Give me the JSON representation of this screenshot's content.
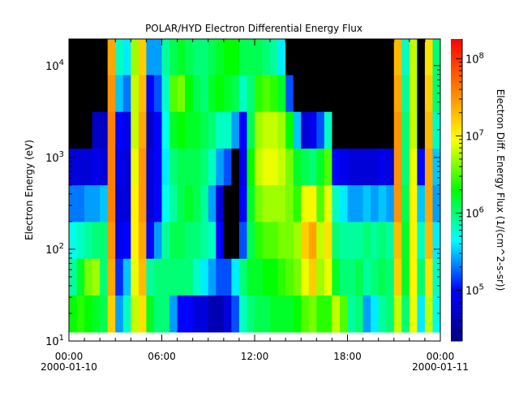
{
  "chart_data": {
    "type": "heatmap",
    "title": "POLAR/HYD  Electron Differential Energy Flux",
    "xlabel": "",
    "ylabel": "Electron Energy (eV)",
    "colorbar_label": "Electron Diff. Energy Flux (1/(cm^2-s-sr))",
    "x_tick_labels": [
      {
        "hours": 0,
        "time": "00:00",
        "date": "2000-01-10"
      },
      {
        "hours": 6,
        "time": "06:00",
        "date": ""
      },
      {
        "hours": 12,
        "time": "12:00",
        "date": ""
      },
      {
        "hours": 18,
        "time": "18:00",
        "date": ""
      },
      {
        "hours": 24,
        "time": "00:00",
        "date": "2000-01-11"
      }
    ],
    "y_scale": "log",
    "y_range_ev": [
      10,
      19500
    ],
    "y_tick_labels": [
      {
        "base": "10",
        "exp": "1",
        "value": 10
      },
      {
        "base": "10",
        "exp": "2",
        "value": 100
      },
      {
        "base": "10",
        "exp": "3",
        "value": 1000
      },
      {
        "base": "10",
        "exp": "4",
        "value": 10000
      }
    ],
    "colorbar_scale": "log",
    "colorbar_range": [
      22000,
      180000000
    ],
    "colorbar_tick_labels": [
      {
        "base": "10",
        "exp": "5",
        "value": 100000
      },
      {
        "base": "10",
        "exp": "6",
        "value": 1000000
      },
      {
        "base": "10",
        "exp": "7",
        "value": 10000000
      },
      {
        "base": "10",
        "exp": "8",
        "value": 100000000
      }
    ],
    "colormap": [
      "#00007f",
      "#0000ff",
      "#00ffff",
      "#00ff00",
      "#ffff00",
      "#ff7f00",
      "#ff0000"
    ],
    "fill_color": "#000000",
    "time_bin_hours": 0.5,
    "energy_bin_centers_ev": [
      20,
      50,
      126,
      316,
      794,
      1995,
      5012,
      12589
    ],
    "energy_range_ev": [
      12.5,
      20000
    ],
    "log10_flux_by_time": [
      [
        6.3,
        5.9,
        5.7,
        5.3,
        4.8,
        null,
        null,
        null
      ],
      [
        6.4,
        6.2,
        5.8,
        5.3,
        4.8,
        null,
        null,
        null
      ],
      [
        6.3,
        6.6,
        5.9,
        5.4,
        4.8,
        null,
        null,
        null
      ],
      [
        6.2,
        6.7,
        6.0,
        5.4,
        4.9,
        4.7,
        null,
        null
      ],
      [
        6.1,
        6.0,
        6.0,
        5.5,
        4.8,
        4.7,
        null,
        null
      ],
      [
        7.2,
        7.4,
        7.5,
        7.6,
        7.6,
        7.6,
        7.5,
        7.4
      ],
      [
        5.4,
        5.1,
        4.9,
        4.8,
        4.9,
        5.0,
        5.5,
        5.8
      ],
      [
        5.8,
        5.5,
        5.0,
        4.8,
        4.8,
        4.9,
        5.3,
        5.6
      ],
      [
        6.8,
        6.9,
        7.0,
        7.0,
        6.9,
        6.8,
        6.8,
        6.7
      ],
      [
        7.1,
        7.3,
        7.4,
        7.5,
        7.5,
        7.4,
        7.3,
        7.2
      ],
      [
        6.2,
        5.9,
        5.0,
        4.8,
        4.8,
        4.7,
        5.0,
        5.4
      ],
      [
        6.0,
        6.0,
        5.4,
        5.0,
        5.0,
        5.0,
        5.2,
        5.4
      ],
      [
        6.0,
        6.0,
        5.9,
        5.7,
        5.6,
        5.7,
        5.8,
        5.9
      ],
      [
        5.4,
        6.0,
        6.1,
        5.9,
        6.0,
        6.2,
        6.5,
        6.1
      ],
      [
        5.0,
        6.0,
        6.1,
        6.1,
        6.1,
        6.3,
        6.6,
        6.2
      ],
      [
        5.0,
        6.0,
        6.0,
        6.2,
        6.1,
        6.2,
        6.3,
        6.1
      ],
      [
        4.8,
        5.8,
        6.0,
        6.1,
        6.1,
        6.2,
        6.1,
        6.0
      ],
      [
        4.8,
        5.6,
        5.9,
        5.9,
        6.0,
        6.1,
        6.0,
        6.0
      ],
      [
        4.6,
        5.4,
        5.8,
        5.4,
        5.8,
        6.0,
        6.2,
        6.1
      ],
      [
        4.6,
        5.2,
        5.0,
        4.8,
        5.4,
        5.8,
        6.3,
        6.2
      ],
      [
        4.8,
        5.2,
        null,
        null,
        5.2,
        5.8,
        6.2,
        6.3
      ],
      [
        5.2,
        5.6,
        null,
        null,
        null,
        5.4,
        6.1,
        6.3
      ],
      [
        5.8,
        6.0,
        5.2,
        5.0,
        4.9,
        5.0,
        5.8,
        6.1
      ],
      [
        6.0,
        6.2,
        6.1,
        6.2,
        6.3,
        6.1,
        6.0,
        6.1
      ],
      [
        6.1,
        6.2,
        6.4,
        6.6,
        6.8,
        6.7,
        6.4,
        6.1
      ],
      [
        6.1,
        6.3,
        6.5,
        6.7,
        6.9,
        6.8,
        6.5,
        6.0
      ],
      [
        6.2,
        6.3,
        6.5,
        6.7,
        6.9,
        6.8,
        6.4,
        5.9
      ],
      [
        6.2,
        6.4,
        6.6,
        6.7,
        6.8,
        6.7,
        6.2,
        5.6
      ],
      [
        6.2,
        6.5,
        6.6,
        6.6,
        6.6,
        6.3,
        5.2,
        null
      ],
      [
        6.3,
        6.6,
        6.7,
        6.4,
        6.2,
        5.5,
        null,
        null
      ],
      [
        6.5,
        6.9,
        7.2,
        6.9,
        6.1,
        4.8,
        null,
        null
      ],
      [
        6.6,
        7.2,
        7.4,
        7.0,
        6.0,
        4.9,
        null,
        null
      ],
      [
        6.4,
        6.7,
        6.8,
        6.5,
        6.2,
        5.2,
        null,
        null
      ],
      [
        6.4,
        6.9,
        7.1,
        6.9,
        6.5,
        5.8,
        null,
        null
      ],
      [
        6.8,
        6.2,
        6.0,
        5.8,
        5.0,
        null,
        null,
        null
      ],
      [
        6.5,
        6.0,
        5.9,
        5.6,
        4.9,
        null,
        null,
        null
      ],
      [
        5.9,
        6.0,
        5.9,
        5.4,
        4.8,
        null,
        null,
        null
      ],
      [
        6.0,
        6.1,
        5.9,
        5.4,
        4.8,
        null,
        null,
        null
      ],
      [
        5.4,
        5.9,
        6.0,
        5.5,
        4.8,
        null,
        null,
        null
      ],
      [
        5.6,
        6.0,
        5.9,
        5.4,
        4.8,
        null,
        null,
        null
      ],
      [
        5.9,
        6.1,
        6.0,
        5.5,
        4.9,
        null,
        null,
        null
      ],
      [
        6.0,
        6.0,
        5.9,
        5.4,
        4.8,
        null,
        null,
        null
      ],
      [
        6.8,
        7.2,
        7.3,
        7.5,
        7.5,
        7.5,
        7.4,
        7.3
      ],
      [
        6.0,
        6.2,
        6.2,
        6.1,
        6.0,
        6.0,
        5.9,
        5.8
      ],
      [
        6.9,
        7.0,
        7.0,
        7.0,
        6.9,
        6.8,
        6.8,
        6.8
      ],
      [
        5.6,
        6.0,
        5.8,
        5.5,
        5.0,
        null,
        null,
        null
      ],
      [
        6.8,
        7.1,
        7.3,
        7.4,
        7.4,
        7.3,
        7.2,
        7.1
      ],
      [
        5.7,
        5.8,
        5.6,
        5.4,
        5.5,
        5.8,
        6.0,
        6.0
      ]
    ]
  }
}
